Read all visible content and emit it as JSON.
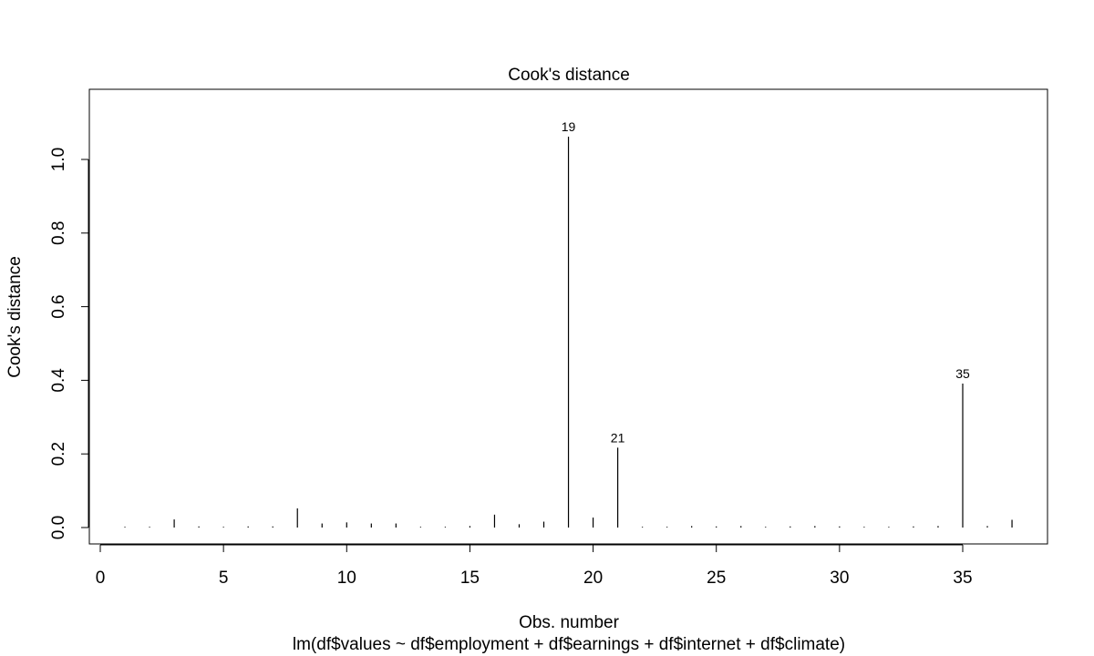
{
  "chart_data": {
    "type": "bar",
    "title": "Cook's distance",
    "xlabel": "Obs. number",
    "ylabel": "Cook's distance",
    "subtitle": "lm(df$values ~ df$employment + df$earnings + df$internet + df$climate)",
    "xlim": [
      0,
      37
    ],
    "ylim": [
      0,
      1.06
    ],
    "x_ticks": [
      0,
      5,
      10,
      15,
      20,
      25,
      30,
      35
    ],
    "y_ticks": [
      0.0,
      0.2,
      0.4,
      0.6,
      0.8,
      1.0
    ],
    "y_tick_labels": [
      "0.0",
      "0.2",
      "0.4",
      "0.6",
      "0.8",
      "1.0"
    ],
    "grid": false,
    "observations": [
      1,
      2,
      3,
      4,
      5,
      6,
      7,
      8,
      9,
      10,
      11,
      12,
      13,
      14,
      15,
      16,
      17,
      18,
      19,
      20,
      21,
      22,
      23,
      24,
      25,
      26,
      27,
      28,
      29,
      30,
      31,
      32,
      33,
      34,
      35,
      36,
      37
    ],
    "values": [
      0.002,
      0.002,
      0.022,
      0.003,
      0.002,
      0.003,
      0.003,
      0.052,
      0.011,
      0.014,
      0.011,
      0.011,
      0.002,
      0.002,
      0.004,
      0.035,
      0.009,
      0.016,
      1.062,
      0.027,
      0.217,
      0.002,
      0.002,
      0.004,
      0.003,
      0.004,
      0.002,
      0.003,
      0.004,
      0.003,
      0.002,
      0.002,
      0.003,
      0.004,
      0.391,
      0.004,
      0.021
    ],
    "labeled_points": [
      {
        "obs": 19,
        "label": "19"
      },
      {
        "obs": 21,
        "label": "21"
      },
      {
        "obs": 35,
        "label": "35"
      }
    ],
    "colors": {
      "bars": "#000000",
      "axes": "#000000",
      "background": "#ffffff"
    }
  }
}
